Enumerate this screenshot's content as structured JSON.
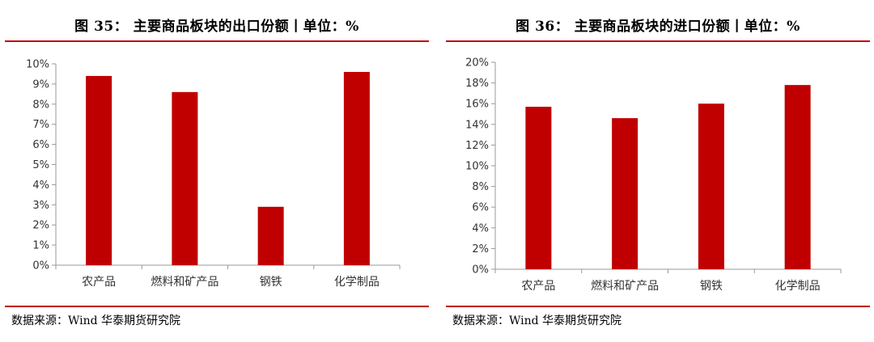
{
  "panels": [
    {
      "figure_title": "图 35：  主要商品板块的出口份额丨单位：%",
      "source": "数据来源：Wind 华泰期货研究院"
    },
    {
      "figure_title": "图 36：  主要商品板块的进口份额丨单位：%",
      "source": "数据来源：Wind  华泰期货研究院"
    }
  ],
  "colors": {
    "bar": "#c00000",
    "rule": "#c00000",
    "axis": "#999999"
  },
  "chart_data": [
    {
      "type": "bar",
      "title": "",
      "xlabel": "",
      "ylabel": "",
      "categories": [
        "农产品",
        "燃料和矿产品",
        "钢铁",
        "化学制品"
      ],
      "values": [
        9.4,
        8.6,
        2.9,
        9.6
      ],
      "ylim": [
        0,
        10
      ],
      "ytick_step": 1,
      "ytick_labels": [
        "0%",
        "1%",
        "2%",
        "3%",
        "4%",
        "5%",
        "6%",
        "7%",
        "8%",
        "9%",
        "10%"
      ],
      "grid": false,
      "legend": "none"
    },
    {
      "type": "bar",
      "title": "",
      "xlabel": "",
      "ylabel": "",
      "categories": [
        "农产品",
        "燃料和矿产品",
        "钢铁",
        "化学制品"
      ],
      "values": [
        15.7,
        14.6,
        16.0,
        17.8
      ],
      "ylim": [
        0,
        20
      ],
      "ytick_step": 2,
      "ytick_labels": [
        "0%",
        "2%",
        "4%",
        "6%",
        "8%",
        "10%",
        "12%",
        "14%",
        "16%",
        "18%",
        "20%"
      ],
      "grid": false,
      "legend": "none"
    }
  ]
}
